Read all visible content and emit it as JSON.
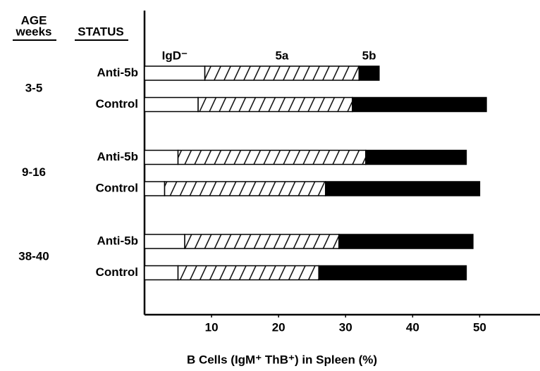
{
  "chart_data": {
    "type": "stacked-barh",
    "group_header": [
      "AGE",
      "weeks"
    ],
    "category_header": "STATUS",
    "groups": [
      "3-5",
      "9-16",
      "38-40"
    ],
    "categories": [
      "Anti-5b",
      "Control",
      "Anti-5b",
      "Control",
      "Anti-5b",
      "Control"
    ],
    "series": [
      {
        "name": "IgD⁻",
        "color": "#ffffff",
        "values": [
          9,
          8,
          5,
          3,
          6,
          5
        ]
      },
      {
        "name": "5a",
        "color": "#ffffff",
        "pattern": "hatch",
        "values": [
          23,
          23,
          28,
          24,
          23,
          21
        ]
      },
      {
        "name": "5b",
        "color": "#000000",
        "values": [
          3,
          20,
          15,
          23,
          20,
          22
        ]
      }
    ],
    "xlabel": "B Cells (IgM⁺ ThB⁺) in Spleen (%)",
    "xlim": [
      0,
      59
    ],
    "xticks": [
      10,
      20,
      30,
      40,
      50
    ]
  }
}
